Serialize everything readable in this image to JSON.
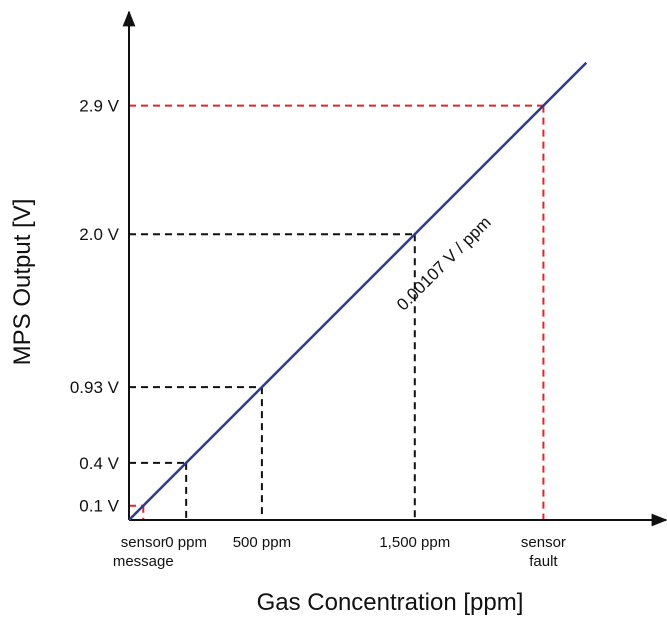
{
  "chart_data": {
    "type": "line",
    "title": "",
    "xlabel": "Gas Concentration [ppm]",
    "ylabel": "MPS Output [V]",
    "ylim": [
      0,
      3.2
    ],
    "grid": false,
    "legend": "none",
    "series": [
      {
        "x": [
          0,
          3.2
        ],
        "values": [
          0,
          3.2
        ],
        "color": "#2e3a8c"
      }
    ],
    "slope_label": "0.00107 V / ppm",
    "markers": [
      {
        "id": "sensor-message",
        "y": 0.1,
        "y_label": "0.1 V",
        "x_label": [
          "sensor",
          "message"
        ],
        "color": "#e0262b"
      },
      {
        "id": "zero",
        "y": 0.4,
        "y_label": "0.4 V",
        "x_label": [
          "0 ppm"
        ],
        "color": "#111111"
      },
      {
        "id": "500",
        "y": 0.93,
        "y_label": "0.93 V",
        "x_label": [
          "500 ppm"
        ],
        "color": "#111111"
      },
      {
        "id": "1500",
        "y": 2.0,
        "y_label": "2.0 V",
        "x_label": [
          "1,500 ppm"
        ],
        "color": "#111111"
      },
      {
        "id": "sensor-fault",
        "y": 2.9,
        "y_label": "2.9 V",
        "x_label": [
          "sensor",
          "fault"
        ],
        "color": "#e0262b"
      }
    ],
    "colors": {
      "line": "#2e3a8c",
      "axis": "#111111",
      "guide": "#111111",
      "fault_guide": "#e0262b"
    }
  }
}
